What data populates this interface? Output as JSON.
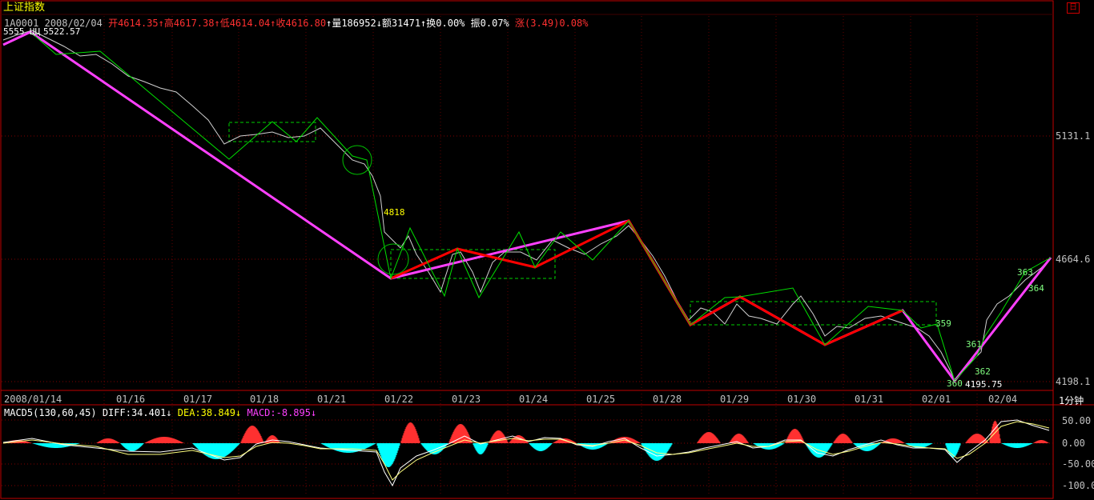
{
  "header": {
    "title": "上证指数",
    "code": "1A0001",
    "date": "2008/02/04",
    "open": "开4614.35",
    "high": "高4617.38",
    "low": "低4614.04",
    "close": "收4616.80",
    "volume": "量186952",
    "amount": "额31471",
    "turnover": "换0.00%",
    "amplitude": "振0.07%",
    "change": "涨(3.49)0.08%",
    "up_arrow": "↑",
    "down_arrow": "↓"
  },
  "price_axis": [
    "5131.1",
    "4664.6",
    "4198.1"
  ],
  "time_axis": [
    "2008/01/14",
    "01/16",
    "01/17",
    "01/18",
    "01/21",
    "01/22",
    "01/23",
    "01/24",
    "01/25",
    "01/28",
    "01/29",
    "01/30",
    "01/31",
    "02/01",
    "02/04"
  ],
  "period_label": "1分钟",
  "annotations": {
    "high_label": "5522.57",
    "high_prefix": "5555 ЦЦ",
    "low_label": "4195.75",
    "mark_4818": "4818",
    "mark_359": "359",
    "mark_360": "360",
    "mark_361": "361",
    "mark_362": "362",
    "mark_363": "363",
    "mark_364": "364"
  },
  "macd": {
    "name": "MACD5(130,60,45)",
    "diff": "DIFF:34.401",
    "dea": "DEA:38.849",
    "macd": "MACD:-8.895",
    "axis": [
      "50.00",
      "0.00",
      "-50.00",
      "-100.0"
    ]
  },
  "colors": {
    "up": "#ff3030",
    "down": "#00ffff",
    "grid": "#8b0000",
    "trend_magenta": "#ff40ff",
    "trend_red": "#ff0000",
    "trend_green": "#00e000",
    "axis_text": "#c0c0c0"
  }
}
